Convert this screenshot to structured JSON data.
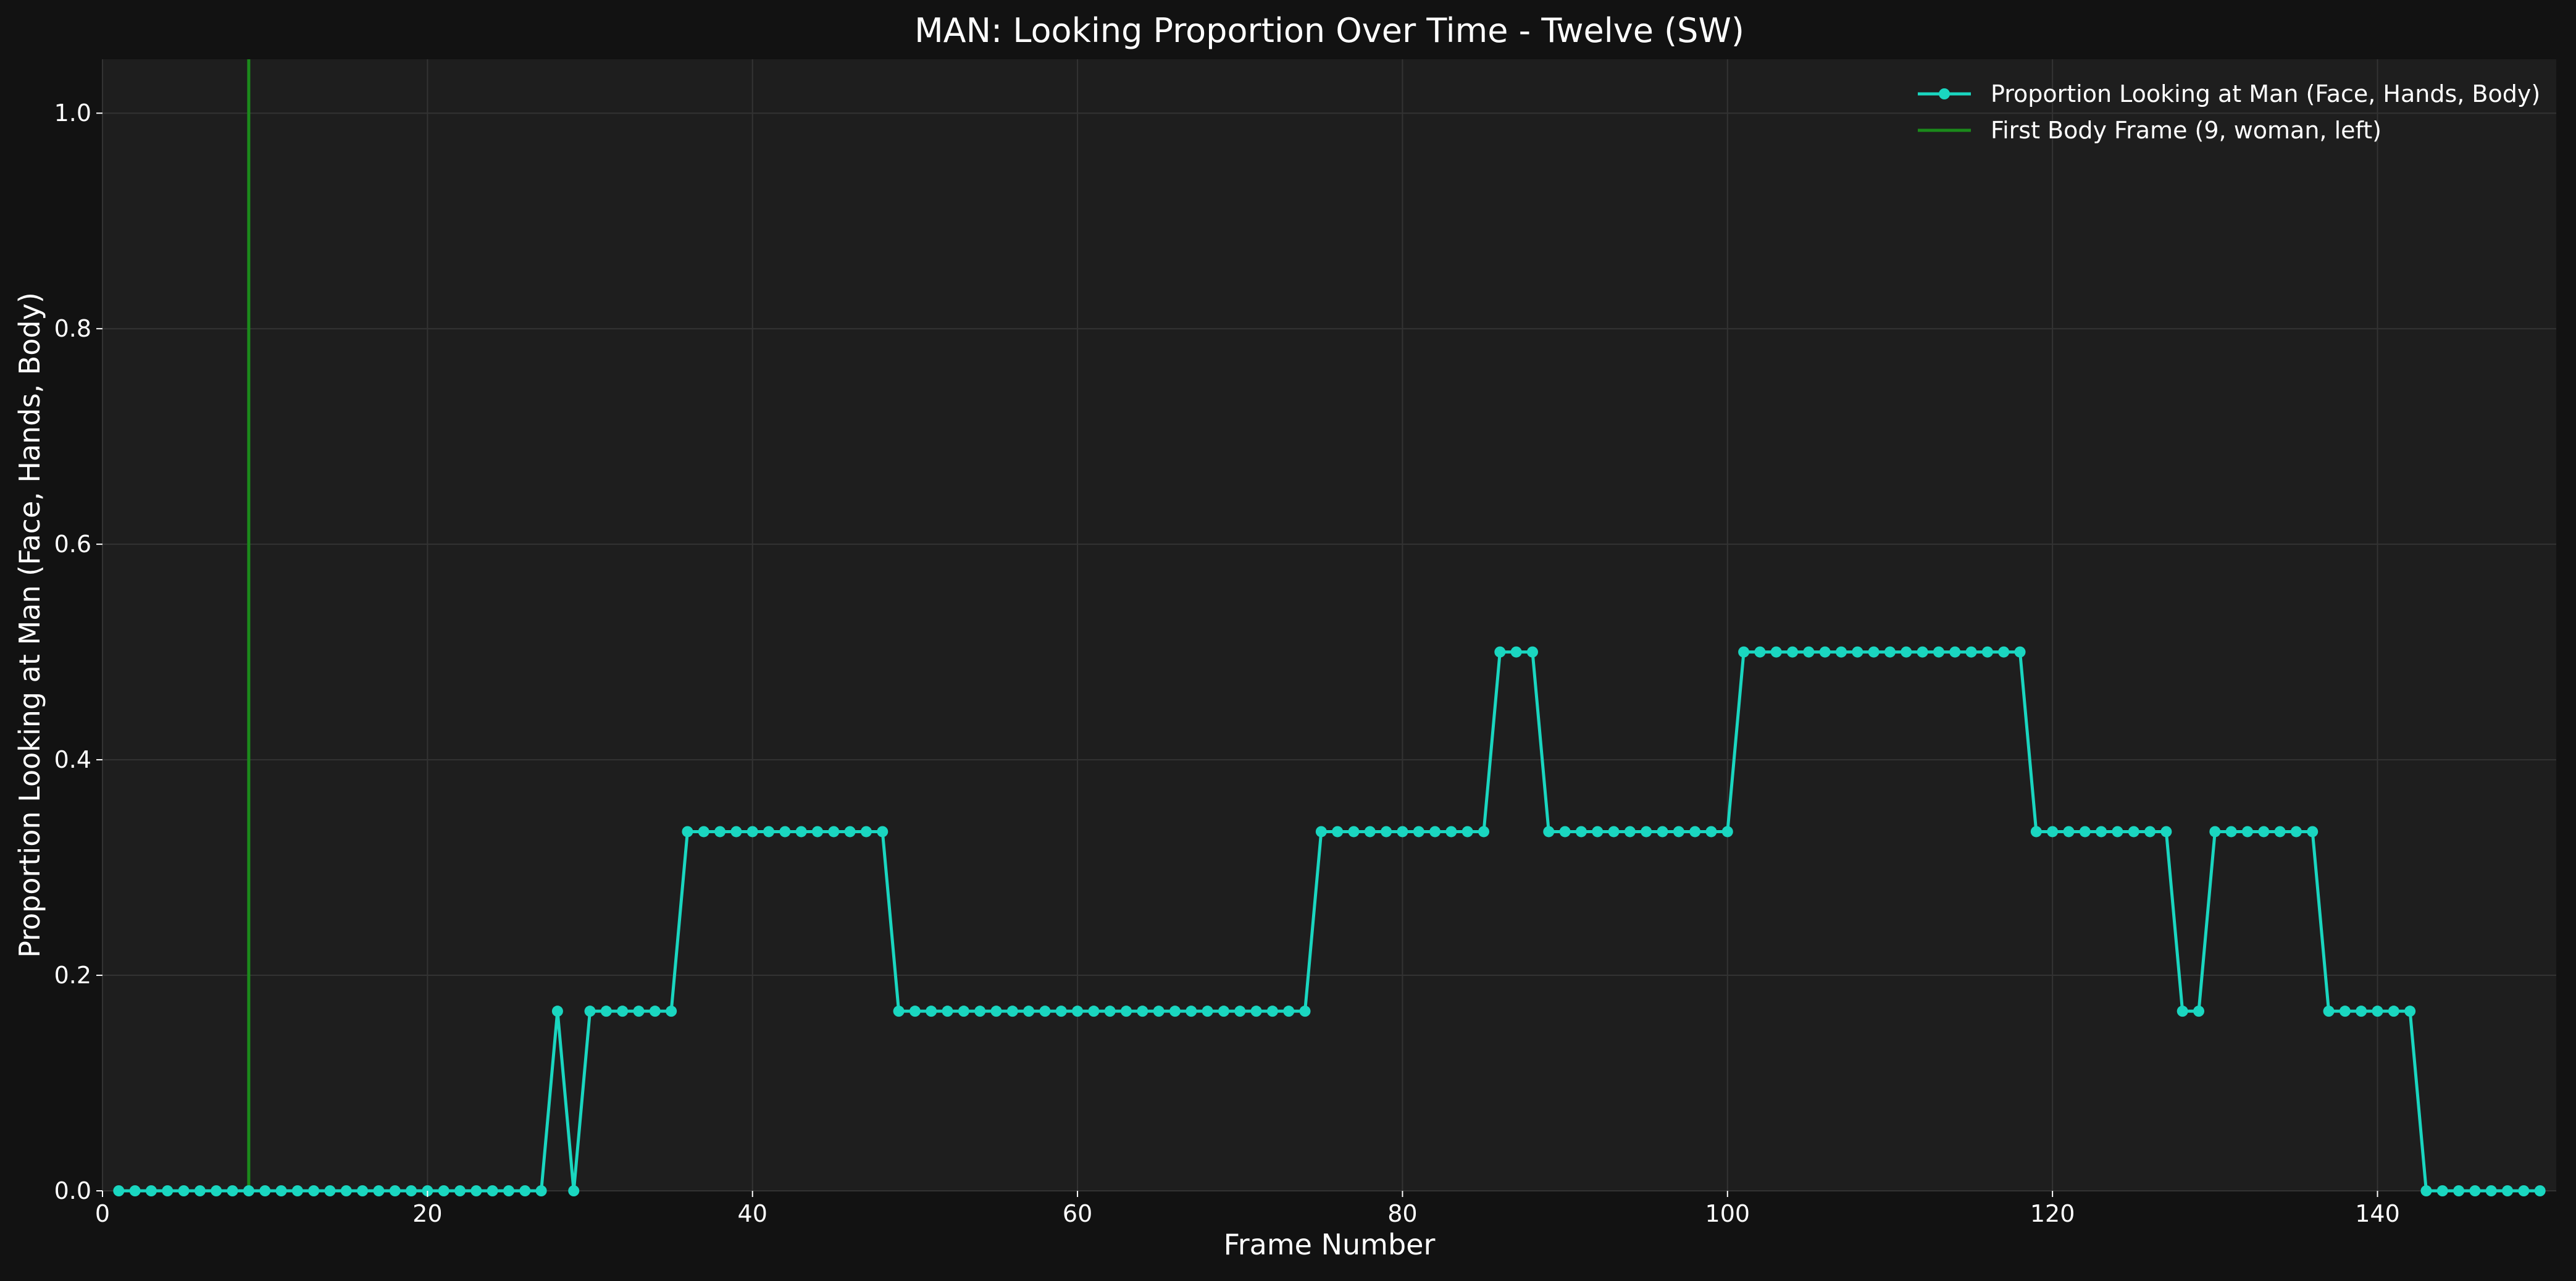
{
  "chart_data": {
    "type": "line",
    "title": "MAN: Looking Proportion Over Time - Twelve (SW)",
    "xlabel": "Frame Number",
    "ylabel": "Proportion Looking at Man (Face, Hands, Body)",
    "xlim": [
      0,
      151
    ],
    "ylim": [
      0,
      1.05
    ],
    "xticks": [
      0,
      20,
      40,
      60,
      80,
      100,
      120,
      140
    ],
    "yticks": [
      0.0,
      0.2,
      0.4,
      0.6,
      0.8,
      1.0
    ],
    "xtick_labels": [
      "0",
      "20",
      "40",
      "60",
      "80",
      "100",
      "120",
      "140"
    ],
    "ytick_labels": [
      "0.0",
      "0.2",
      "0.4",
      "0.6",
      "0.8",
      "1.0"
    ],
    "grid": true,
    "legend_position": "top-right",
    "series": [
      {
        "name": "Proportion Looking at Man (Face, Hands, Body)",
        "color": "#1ad6c0",
        "marker": "circle",
        "segments": [
          {
            "from": 1,
            "to": 27,
            "value": 0
          },
          {
            "from": 28,
            "to": 28,
            "value": 0.1667
          },
          {
            "from": 29,
            "to": 29,
            "value": 0
          },
          {
            "from": 30,
            "to": 35,
            "value": 0.1667
          },
          {
            "from": 36,
            "to": 48,
            "value": 0.3333
          },
          {
            "from": 49,
            "to": 74,
            "value": 0.1667
          },
          {
            "from": 75,
            "to": 85,
            "value": 0.3333
          },
          {
            "from": 86,
            "to": 88,
            "value": 0.5
          },
          {
            "from": 89,
            "to": 100,
            "value": 0.3333
          },
          {
            "from": 101,
            "to": 118,
            "value": 0.5
          },
          {
            "from": 119,
            "to": 127,
            "value": 0.3333
          },
          {
            "from": 128,
            "to": 129,
            "value": 0.1667
          },
          {
            "from": 130,
            "to": 136,
            "value": 0.3333
          },
          {
            "from": 137,
            "to": 142,
            "value": 0.1667
          },
          {
            "from": 143,
            "to": 150,
            "value": 0
          }
        ]
      }
    ],
    "vlines": [
      {
        "name": "First Body Frame (9, woman, left)",
        "x": 9,
        "color": "#1b8a1b"
      }
    ]
  },
  "colors": {
    "figure_bg": "#121212",
    "plot_bg": "#1e1e1e",
    "grid": "#333333",
    "text": "#ffffff"
  }
}
